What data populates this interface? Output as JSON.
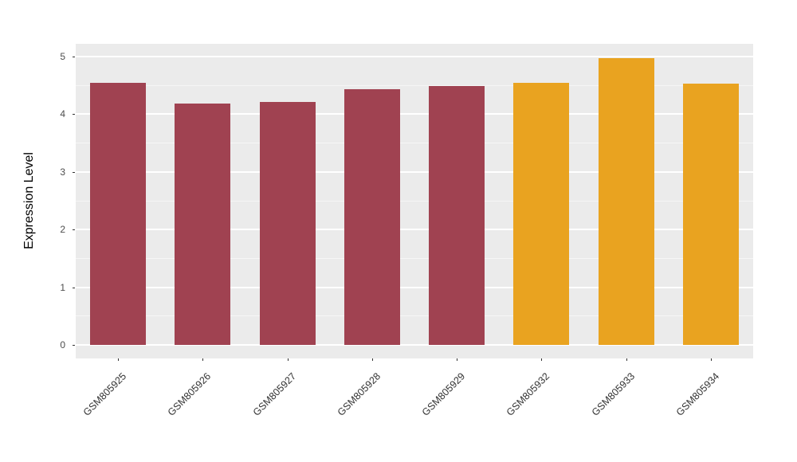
{
  "chart_data": {
    "type": "bar",
    "title": "",
    "xlabel": "",
    "ylabel": "Expression Level",
    "categories": [
      "GSM805925",
      "GSM805926",
      "GSM805927",
      "GSM805928",
      "GSM805929",
      "GSM805932",
      "GSM805933",
      "GSM805934"
    ],
    "values": [
      4.54,
      4.18,
      4.21,
      4.43,
      4.49,
      4.55,
      4.97,
      4.53
    ],
    "bar_colors": [
      "#A04251",
      "#A04251",
      "#A04251",
      "#A04251",
      "#A04251",
      "#E9A320",
      "#E9A320",
      "#E9A320"
    ],
    "group_colors": {
      "maroon_group": "#A04251",
      "orange_group": "#E9A320"
    },
    "ylim": [
      0,
      5
    ],
    "y_ticks": [
      "0",
      "1",
      "2",
      "3",
      "4",
      "5"
    ],
    "y_minor_ticks": [
      0.5,
      1.5,
      2.5,
      3.5,
      4.5
    ],
    "grid": "on",
    "legend": "none",
    "panel_background": "#EBEBEB",
    "gridline_color": "#FFFFFF"
  }
}
